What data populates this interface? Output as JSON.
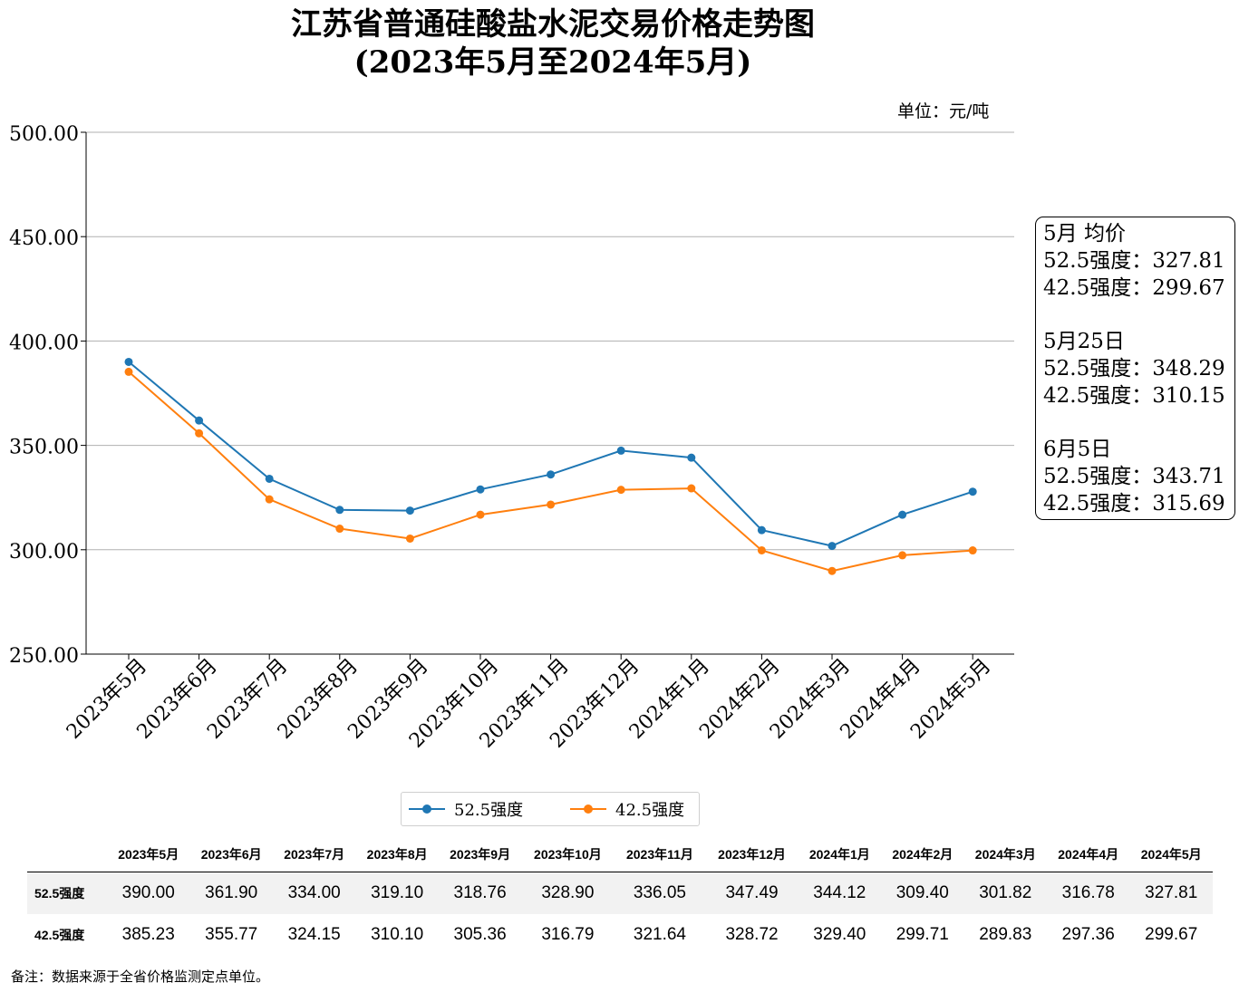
{
  "title_line1": "江苏省普通硅酸盐水泥交易价格走势图",
  "title_line2": "(2023年5月至2024年5月)",
  "unit": "单位：元/吨",
  "note": "备注：数据来源于全省价格监测定点单位。",
  "colors": {
    "s525": "#1f77b4",
    "s425": "#ff7f0e"
  },
  "info_box": [
    {
      "heading": "5月 均价",
      "lines": [
        "52.5强度：327.81",
        "42.5强度：299.67"
      ]
    },
    {
      "heading": "5月25日",
      "lines": [
        "52.5强度：348.29",
        "42.5强度：310.15"
      ]
    },
    {
      "heading": "6月5日",
      "lines": [
        "52.5强度：343.71",
        "42.5强度：315.69"
      ]
    }
  ],
  "chart_data": {
    "type": "line",
    "title": "江苏省普通硅酸盐水泥交易价格走势图 (2023年5月至2024年5月)",
    "categories": [
      "2023年5月",
      "2023年6月",
      "2023年7月",
      "2023年8月",
      "2023年9月",
      "2023年10月",
      "2023年11月",
      "2023年12月",
      "2024年1月",
      "2024年2月",
      "2024年3月",
      "2024年4月",
      "2024年5月"
    ],
    "series": [
      {
        "name": "52.5强度",
        "color": "#1f77b4",
        "values": [
          390.0,
          361.9,
          334.0,
          319.1,
          318.76,
          328.9,
          336.05,
          347.49,
          344.12,
          309.4,
          301.82,
          316.78,
          327.81
        ]
      },
      {
        "name": "42.5强度",
        "color": "#ff7f0e",
        "values": [
          385.23,
          355.77,
          324.15,
          310.1,
          305.36,
          316.79,
          321.64,
          328.72,
          329.4,
          299.71,
          289.83,
          297.36,
          299.67
        ]
      }
    ],
    "ylim": [
      250,
      500
    ],
    "yticks": [
      "250.00",
      "300.00",
      "350.00",
      "400.00",
      "450.00",
      "500.00"
    ],
    "grid": "horizontal",
    "legend": "bottom"
  },
  "table": {
    "headers": [
      "2023年5月",
      "2023年6月",
      "2023年7月",
      "2023年8月",
      "2023年9月",
      "2023年10月",
      "2023年11月",
      "2023年12月",
      "2024年1月",
      "2024年2月",
      "2024年3月",
      "2024年4月",
      "2024年5月"
    ],
    "rows": [
      {
        "label": "52.5强度",
        "values": [
          "390.00",
          "361.90",
          "334.00",
          "319.10",
          "318.76",
          "328.90",
          "336.05",
          "347.49",
          "344.12",
          "309.40",
          "301.82",
          "316.78",
          "327.81"
        ]
      },
      {
        "label": "42.5强度",
        "values": [
          "385.23",
          "355.77",
          "324.15",
          "310.10",
          "305.36",
          "316.79",
          "321.64",
          "328.72",
          "329.40",
          "299.71",
          "289.83",
          "297.36",
          "299.67"
        ]
      }
    ]
  }
}
